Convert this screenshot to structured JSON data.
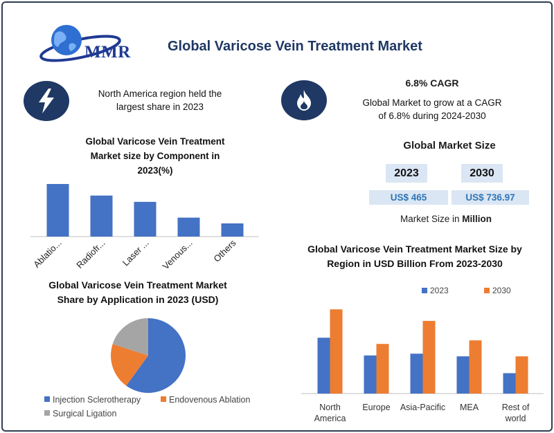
{
  "header": {
    "logo_text": "MMR",
    "title": "Global Varicose Vein Treatment Market"
  },
  "highlights": {
    "left_icon": "lightning-icon",
    "left_line1": "North America region held the",
    "left_line2": "largest share in 2023",
    "right_icon": "flame-icon",
    "cagr_title": "6.8% CAGR",
    "cagr_line1": "Global Market to grow at a CAGR",
    "cagr_line2": "of 6.8% during 2024-2030"
  },
  "market_size": {
    "title": "Global Market Size",
    "year1": "2023",
    "year2": "2030",
    "value1": "US$ 465",
    "value2": "US$ 736.97",
    "unit_prefix": "Market Size in",
    "unit_bold": "Million"
  },
  "colors": {
    "navy": "#1f3864",
    "blue": "#4472c4",
    "orange": "#ed7d31",
    "gray": "#a5a5a5",
    "value_blue": "#2e75b6",
    "box_fill": "#dbe6f4"
  },
  "chart_data": [
    {
      "type": "bar",
      "title_lines": [
        "Global Varicose Vein Treatment",
        "Market size by  Component in",
        "2023(%)"
      ],
      "categories": [
        "Ablatio...",
        "Radiofr...",
        "Laser ...",
        "Venous...",
        "Others"
      ],
      "values": [
        100,
        78,
        66,
        36,
        25
      ],
      "ylim": [
        0,
        100
      ]
    },
    {
      "type": "pie",
      "title_lines": [
        "Global Varicose Vein Treatment Market",
        "Share by Application in 2023 (USD)"
      ],
      "labels": [
        "Injection Sclerotherapy",
        "Endovenous Ablation",
        "Surgical Ligation"
      ],
      "values": [
        60,
        20,
        20
      ],
      "colors": [
        "#4472c4",
        "#ed7d31",
        "#a5a5a5"
      ],
      "legend": "bottom"
    },
    {
      "type": "bar",
      "title_lines": [
        "Global Varicose Vein Treatment Market Size by",
        "Region in USD Billion From 2023-2030"
      ],
      "categories": [
        [
          "North",
          "America"
        ],
        [
          "Europe"
        ],
        [
          "Asia-Pacific"
        ],
        [
          "MEA"
        ],
        [
          "Rest of",
          "world"
        ]
      ],
      "series": [
        {
          "name": "2023",
          "values": [
            63,
            43,
            45,
            42,
            23
          ],
          "color": "#4472c4"
        },
        {
          "name": "2030",
          "values": [
            95,
            56,
            82,
            60,
            42
          ],
          "color": "#ed7d31"
        }
      ],
      "ylim": [
        0,
        110
      ],
      "legend": "top"
    }
  ]
}
